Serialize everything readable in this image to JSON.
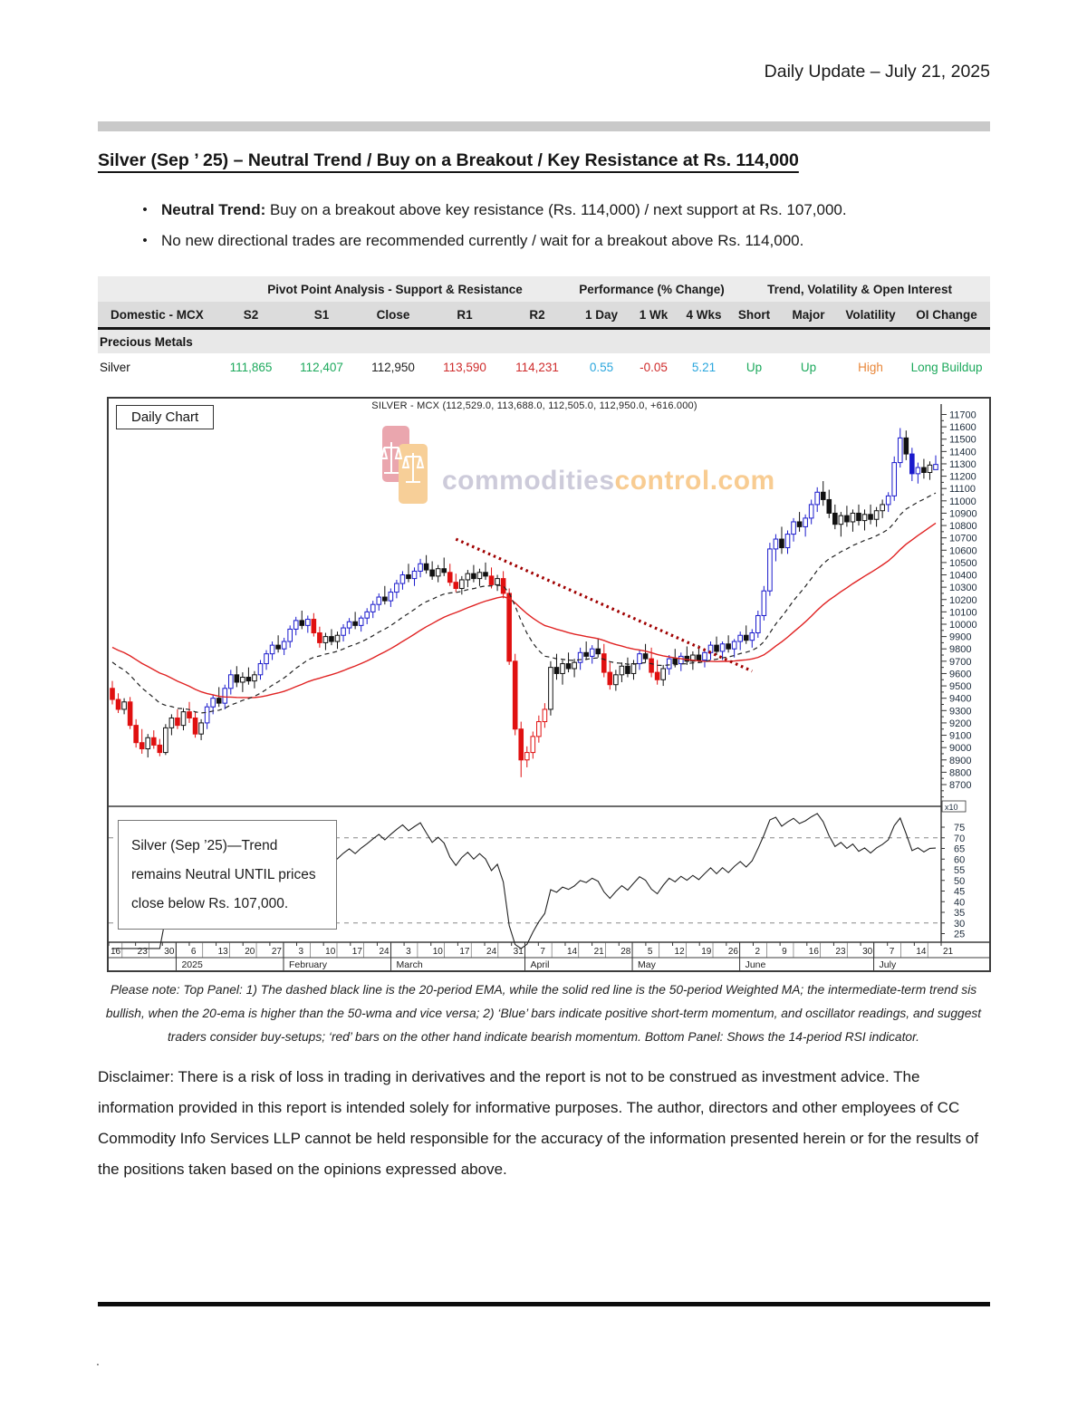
{
  "header": {
    "title": "Daily Update – July 21, 2025"
  },
  "report": {
    "title": "Silver (Sep ’ 25) – Neutral Trend / Buy on a Breakout / Key Resistance at Rs. 114,000",
    "bullets": [
      {
        "bold": "Neutral Trend:",
        "text": " Buy on a breakout above key resistance (Rs. 114,000) / next support at Rs. 107,000."
      },
      {
        "bold": "",
        "text": "No new directional trades are recommended currently / wait for a breakout above Rs. 114,000."
      }
    ]
  },
  "table": {
    "group_headers": [
      "Pivot Point Analysis - Support & Resistance",
      "Performance (% Change)",
      "Trend, Volatility & Open Interest"
    ],
    "columns": [
      "Domestic - MCX",
      "S2",
      "S1",
      "Close",
      "R1",
      "R2",
      "1 Day",
      "1 Wk",
      "4 Wks",
      "Short",
      "Major",
      "Volatility",
      "OI Change"
    ],
    "section_label": "Precious Metals",
    "rows": [
      {
        "name": "Silver",
        "cells": [
          {
            "t": "111,865",
            "c": "green"
          },
          {
            "t": "112,407",
            "c": "green"
          },
          {
            "t": "112,950",
            "c": "dark"
          },
          {
            "t": "113,590",
            "c": "red"
          },
          {
            "t": "114,231",
            "c": "red"
          },
          {
            "t": "0.55",
            "c": "blue"
          },
          {
            "t": "-0.05",
            "c": "red"
          },
          {
            "t": "5.21",
            "c": "blue"
          },
          {
            "t": "Up",
            "c": "green"
          },
          {
            "t": "Up",
            "c": "green"
          },
          {
            "t": "High",
            "c": "orange"
          },
          {
            "t": "Long Buildup",
            "c": "green"
          }
        ]
      }
    ],
    "palette": {
      "green": "#1ca95c",
      "red": "#cf2b2b",
      "blue": "#2aa6dd",
      "orange": "#e8873a",
      "dark": "#222222"
    }
  },
  "chart_data": {
    "type": "candlestick+rsi",
    "title": "SILVER - MCX (112,529.0, 113,688.0, 112,505.0, 112,950.0, +616.000)",
    "panel_label": "Daily Chart",
    "watermark": {
      "word1": "commodities",
      "word2": "control.com",
      "color1": "#a5a1bd",
      "color2": "#f3a33a"
    },
    "annotation": "Silver (Sep ’25)—Trend remains Neutral UNTIL prices close below Rs. 107,000.",
    "legend_note": "dashed black = 20-period EMA, solid red = 50-period WMA, dotted dark-red = falling trendline, bottom panel = 14-period RSI",
    "price_axis": {
      "labels": [
        11700,
        11600,
        11500,
        11400,
        11300,
        11200,
        11100,
        11000,
        10900,
        10800,
        10700,
        10600,
        10500,
        10400,
        10300,
        10200,
        10100,
        10000,
        9900,
        9800,
        9700,
        9600,
        9500,
        9400,
        9300,
        9200,
        9100,
        9000,
        8900,
        8800,
        8700
      ],
      "multiplier": "x10"
    },
    "rsi_axis": {
      "labels": [
        75,
        70,
        65,
        60,
        55,
        50,
        45,
        40,
        35,
        30,
        25
      ],
      "gridlines": [
        70,
        30
      ]
    },
    "x_axis": {
      "day_ticks": [
        "16",
        "23",
        "30",
        "6",
        "13",
        "20",
        "27",
        "3",
        "10",
        "17",
        "24",
        "3",
        "10",
        "17",
        "24",
        "31",
        "7",
        "14",
        "21",
        "28",
        "5",
        "12",
        "19",
        "26",
        "2",
        "9",
        "16",
        "23",
        "30",
        "7",
        "14",
        "21"
      ],
      "months": [
        {
          "label": "2025",
          "start": 0.081
        },
        {
          "label": "February",
          "start": 0.21
        },
        {
          "label": "March",
          "start": 0.339
        },
        {
          "label": "April",
          "start": 0.5
        },
        {
          "label": "May",
          "start": 0.629
        },
        {
          "label": "June",
          "start": 0.758
        },
        {
          "label": "July",
          "start": 0.919
        }
      ]
    },
    "trendline": {
      "from": [
        58,
        10690
      ],
      "to": [
        108,
        9620
      ]
    },
    "colors": {
      "up": "#1a1acc",
      "down": "#e01010",
      "neutral": "#111111",
      "ema": "#222222",
      "wma": "#e02222",
      "trend": "#a00000",
      "rsi": "#222222"
    },
    "candles": [
      [
        9480,
        9540,
        9350,
        9390,
        "r"
      ],
      [
        9390,
        9440,
        9280,
        9310,
        "r"
      ],
      [
        9310,
        9400,
        9270,
        9370,
        "k"
      ],
      [
        9370,
        9410,
        9150,
        9180,
        "r"
      ],
      [
        9180,
        9230,
        9000,
        9040,
        "r"
      ],
      [
        9040,
        9150,
        8950,
        8990,
        "r"
      ],
      [
        8990,
        9110,
        8920,
        9080,
        "k"
      ],
      [
        9080,
        9140,
        8990,
        9020,
        "r"
      ],
      [
        9020,
        9070,
        8930,
        8960,
        "r"
      ],
      [
        8960,
        9190,
        8940,
        9160,
        "k"
      ],
      [
        9160,
        9270,
        9100,
        9240,
        "k"
      ],
      [
        9240,
        9310,
        9150,
        9180,
        "r"
      ],
      [
        9180,
        9320,
        9140,
        9290,
        "k"
      ],
      [
        9290,
        9370,
        9200,
        9240,
        "r"
      ],
      [
        9240,
        9290,
        9080,
        9110,
        "r"
      ],
      [
        9110,
        9230,
        9060,
        9200,
        "k"
      ],
      [
        9200,
        9360,
        9150,
        9330,
        "b"
      ],
      [
        9330,
        9430,
        9270,
        9400,
        "b"
      ],
      [
        9400,
        9490,
        9330,
        9360,
        "k"
      ],
      [
        9360,
        9510,
        9310,
        9480,
        "b"
      ],
      [
        9480,
        9630,
        9430,
        9590,
        "b"
      ],
      [
        9590,
        9660,
        9490,
        9530,
        "k"
      ],
      [
        9530,
        9610,
        9450,
        9570,
        "k"
      ],
      [
        9570,
        9650,
        9510,
        9540,
        "k"
      ],
      [
        9540,
        9620,
        9480,
        9590,
        "k"
      ],
      [
        9590,
        9710,
        9550,
        9680,
        "b"
      ],
      [
        9680,
        9790,
        9630,
        9760,
        "b"
      ],
      [
        9760,
        9860,
        9710,
        9830,
        "b"
      ],
      [
        9830,
        9910,
        9770,
        9800,
        "k"
      ],
      [
        9800,
        9890,
        9750,
        9860,
        "b"
      ],
      [
        9860,
        9990,
        9810,
        9960,
        "b"
      ],
      [
        9960,
        10060,
        9910,
        10030,
        "b"
      ],
      [
        10030,
        10110,
        9960,
        9990,
        "k"
      ],
      [
        9990,
        10070,
        9930,
        10040,
        "b"
      ],
      [
        10040,
        10090,
        9900,
        9930,
        "r"
      ],
      [
        9930,
        9980,
        9810,
        9850,
        "r"
      ],
      [
        9850,
        9930,
        9790,
        9900,
        "k"
      ],
      [
        9900,
        9960,
        9830,
        9860,
        "k"
      ],
      [
        9860,
        9940,
        9800,
        9910,
        "k"
      ],
      [
        9910,
        10000,
        9860,
        9970,
        "b"
      ],
      [
        9970,
        10050,
        9920,
        10020,
        "b"
      ],
      [
        10020,
        10100,
        9960,
        9990,
        "k"
      ],
      [
        9990,
        10070,
        9940,
        10050,
        "b"
      ],
      [
        10050,
        10130,
        10000,
        10100,
        "b"
      ],
      [
        10100,
        10190,
        10050,
        10160,
        "b"
      ],
      [
        10160,
        10250,
        10110,
        10220,
        "b"
      ],
      [
        10220,
        10310,
        10160,
        10190,
        "k"
      ],
      [
        10190,
        10290,
        10140,
        10260,
        "b"
      ],
      [
        10260,
        10360,
        10210,
        10330,
        "b"
      ],
      [
        10330,
        10430,
        10280,
        10400,
        "b"
      ],
      [
        10400,
        10490,
        10340,
        10370,
        "k"
      ],
      [
        10370,
        10460,
        10310,
        10430,
        "b"
      ],
      [
        10430,
        10530,
        10380,
        10490,
        "b"
      ],
      [
        10490,
        10560,
        10410,
        10440,
        "k"
      ],
      [
        10440,
        10510,
        10360,
        10390,
        "k"
      ],
      [
        10390,
        10480,
        10340,
        10450,
        "k"
      ],
      [
        10450,
        10540,
        10390,
        10420,
        "k"
      ],
      [
        10420,
        10490,
        10310,
        10340,
        "r"
      ],
      [
        10340,
        10410,
        10260,
        10290,
        "r"
      ],
      [
        10290,
        10390,
        10240,
        10360,
        "k"
      ],
      [
        10360,
        10440,
        10300,
        10410,
        "k"
      ],
      [
        10410,
        10480,
        10340,
        10370,
        "k"
      ],
      [
        10370,
        10450,
        10310,
        10420,
        "k"
      ],
      [
        10420,
        10500,
        10360,
        10390,
        "k"
      ],
      [
        10390,
        10460,
        10290,
        10320,
        "r"
      ],
      [
        10320,
        10400,
        10270,
        10370,
        "k"
      ],
      [
        10370,
        10430,
        10210,
        10250,
        "r"
      ],
      [
        10250,
        10290,
        9670,
        9700,
        "r"
      ],
      [
        9700,
        9760,
        9100,
        9150,
        "r"
      ],
      [
        9150,
        9210,
        8760,
        8900,
        "r"
      ],
      [
        8900,
        9010,
        8840,
        8960,
        "r"
      ],
      [
        8960,
        9130,
        8910,
        9090,
        "r"
      ],
      [
        9090,
        9260,
        9040,
        9210,
        "r"
      ],
      [
        9210,
        9360,
        9160,
        9310,
        "r"
      ],
      [
        9310,
        9700,
        9260,
        9650,
        "k"
      ],
      [
        9650,
        9760,
        9550,
        9600,
        "k"
      ],
      [
        9600,
        9710,
        9510,
        9680,
        "k"
      ],
      [
        9680,
        9770,
        9610,
        9640,
        "k"
      ],
      [
        9640,
        9720,
        9570,
        9690,
        "k"
      ],
      [
        9690,
        9810,
        9630,
        9770,
        "b"
      ],
      [
        9770,
        9860,
        9710,
        9740,
        "k"
      ],
      [
        9740,
        9830,
        9680,
        9800,
        "b"
      ],
      [
        9800,
        9880,
        9730,
        9760,
        "k"
      ],
      [
        9760,
        9840,
        9570,
        9610,
        "r"
      ],
      [
        9610,
        9690,
        9470,
        9510,
        "r"
      ],
      [
        9510,
        9630,
        9460,
        9590,
        "k"
      ],
      [
        9590,
        9690,
        9530,
        9660,
        "k"
      ],
      [
        9660,
        9730,
        9570,
        9600,
        "k"
      ],
      [
        9600,
        9710,
        9550,
        9680,
        "k"
      ],
      [
        9680,
        9790,
        9630,
        9760,
        "b"
      ],
      [
        9760,
        9840,
        9690,
        9720,
        "k"
      ],
      [
        9720,
        9810,
        9570,
        9610,
        "r"
      ],
      [
        9610,
        9710,
        9510,
        9550,
        "r"
      ],
      [
        9550,
        9670,
        9500,
        9640,
        "k"
      ],
      [
        9640,
        9750,
        9590,
        9720,
        "b"
      ],
      [
        9720,
        9800,
        9650,
        9680,
        "k"
      ],
      [
        9680,
        9770,
        9620,
        9740,
        "b"
      ],
      [
        9740,
        9820,
        9670,
        9700,
        "k"
      ],
      [
        9700,
        9780,
        9630,
        9750,
        "k"
      ],
      [
        9750,
        9830,
        9690,
        9710,
        "k"
      ],
      [
        9710,
        9800,
        9650,
        9770,
        "b"
      ],
      [
        9770,
        9860,
        9710,
        9830,
        "b"
      ],
      [
        9830,
        9900,
        9750,
        9780,
        "k"
      ],
      [
        9780,
        9860,
        9710,
        9840,
        "b"
      ],
      [
        9840,
        9910,
        9770,
        9800,
        "k"
      ],
      [
        9800,
        9880,
        9730,
        9860,
        "b"
      ],
      [
        9860,
        9940,
        9790,
        9910,
        "b"
      ],
      [
        9910,
        9990,
        9840,
        9870,
        "k"
      ],
      [
        9870,
        9960,
        9810,
        9930,
        "b"
      ],
      [
        9930,
        10110,
        9890,
        10070,
        "b"
      ],
      [
        10070,
        10310,
        10030,
        10270,
        "b"
      ],
      [
        10270,
        10660,
        10230,
        10610,
        "b"
      ],
      [
        10610,
        10730,
        10510,
        10690,
        "b"
      ],
      [
        10690,
        10790,
        10570,
        10620,
        "k"
      ],
      [
        10620,
        10760,
        10570,
        10730,
        "b"
      ],
      [
        10730,
        10860,
        10670,
        10830,
        "b"
      ],
      [
        10830,
        10910,
        10750,
        10790,
        "k"
      ],
      [
        10790,
        10890,
        10710,
        10860,
        "b"
      ],
      [
        10860,
        11010,
        10810,
        10970,
        "b"
      ],
      [
        10970,
        11110,
        10910,
        11070,
        "b"
      ],
      [
        11070,
        11160,
        10960,
        11010,
        "k"
      ],
      [
        11010,
        11090,
        10860,
        10900,
        "k"
      ],
      [
        10900,
        10970,
        10770,
        10810,
        "k"
      ],
      [
        10810,
        10910,
        10710,
        10880,
        "k"
      ],
      [
        10880,
        10960,
        10790,
        10830,
        "k"
      ],
      [
        10830,
        10930,
        10750,
        10900,
        "k"
      ],
      [
        10900,
        10970,
        10800,
        10840,
        "k"
      ],
      [
        10840,
        10930,
        10760,
        10890,
        "k"
      ],
      [
        10890,
        10970,
        10810,
        10850,
        "k"
      ],
      [
        10850,
        10950,
        10790,
        10920,
        "k"
      ],
      [
        10920,
        11010,
        10860,
        10970,
        "k"
      ],
      [
        10970,
        11070,
        10910,
        11040,
        "b"
      ],
      [
        11040,
        11360,
        11000,
        11310,
        "b"
      ],
      [
        11310,
        11590,
        11270,
        11510,
        "b"
      ],
      [
        11510,
        11570,
        11330,
        11380,
        "k"
      ],
      [
        11380,
        11430,
        11160,
        11220,
        "b"
      ],
      [
        11220,
        11310,
        11140,
        11270,
        "b"
      ],
      [
        11270,
        11340,
        11180,
        11230,
        "k"
      ],
      [
        11230,
        11320,
        11170,
        11290,
        "k"
      ],
      [
        11253,
        11369,
        11251,
        11295,
        "b"
      ]
    ]
  },
  "note": "Please note: Top Panel: 1) The dashed black line is the 20-period EMA, while the solid red line is the 50-period Weighted MA; the intermediate-term trend sis bullish, when the 20-ema is higher than the 50-wma and vice versa; 2) ‘Blue’ bars indicate positive short-term momentum, and oscillator readings, and suggest traders consider buy-setups; ‘red’ bars on the other hand indicate bearish momentum. Bottom Panel: Shows the 14-period RSI indicator.",
  "disclaimer": "Disclaimer: There is a risk of loss in trading in derivatives and the report is not to be construed as investment advice. The information provided in this report is intended solely for informative purposes. The author, directors and other employees of CC Commodity Info Services LLP cannot be held responsible for the accuracy of the information presented herein or for the results of the positions taken based on the opinions expressed above.",
  "footer_dot": "."
}
